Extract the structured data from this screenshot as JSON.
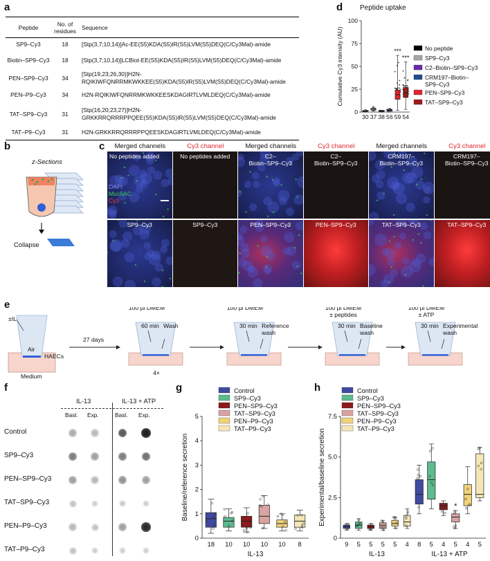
{
  "panels": {
    "a": "a",
    "b": "b",
    "c": "c",
    "d": "d",
    "e": "e",
    "f": "f",
    "g": "g",
    "h": "h"
  },
  "table": {
    "headers": [
      "Peptide",
      "No. of residues",
      "Sequence"
    ],
    "header_residues_line1": "No. of",
    "header_residues_line2": "residues",
    "rows": [
      {
        "peptide": "SP9–Cy3",
        "residues": "18",
        "sequence": "[Stp(3,7;10,14)]Ac-EE(S5)KDA(S5)IR(S5)LVM(S5)DEQ(C/Cy3Mal)-amide"
      },
      {
        "peptide": "Biotin–SP9–Cy3",
        "residues": "18",
        "sequence": "[Stp(3,7;10,14)]LCBiot-EE(S5)KDA(S5)IR(S5)LVM(S5)DEQ(C/Cy3Mal)-amide"
      },
      {
        "peptide": "PEN–SP9–Cy3",
        "residues": "34",
        "sequence": "[Stp(19,23;26,30)]H2N-RQIKIWFQNRRMKWKKEE(S5)KDA(S5)IR(S5)LVM(S5)DEQ(C/Cy3Mal)-amide"
      },
      {
        "peptide": "PEN–P9–Cy3",
        "residues": "34",
        "sequence": "H2N-RQIKIWFQNRRMKWKKEESKDAGIRTLVMLDEQ(C/Cy3Mal)-amide"
      },
      {
        "peptide": "TAT–SP9–Cy3",
        "residues": "31",
        "sequence": "[Stp(16,20;23,27)]H2N-GRKKRRQRRRPPQEE(S5)KDA(S5)IR(S5)LVM(S5)DEQ(C/Cy3Mal)-amide"
      },
      {
        "peptide": "TAT–P9–Cy3",
        "residues": "31",
        "sequence": "H2N-GRKKRRQRRRPPQEESKDAGIRTLVMLDEQ(C/Cy3Mal)-amide"
      }
    ]
  },
  "panel_b": {
    "title": "z-Sections",
    "arrow_label": "Collapse"
  },
  "panel_c": {
    "column_headers": [
      "Merged channels",
      "Cy3 channel",
      "Merged channels",
      "Cy3 channel",
      "Merged channels",
      "Cy3 channel"
    ],
    "top_labels": [
      "No peptides added",
      "No peptides added",
      "C2–\nBiotin–SP9–Cy3",
      "C2–\nBiotin–SP9–Cy3",
      "CRM197–\nBiotin–SP9–Cy3",
      "CRM197–\nBiotin–SP9–Cy3"
    ],
    "bottom_labels": [
      "SP9–Cy3",
      "SP9–Cy3",
      "PEN–SP9–Cy3",
      "PEN–SP9–Cy3",
      "TAT–SP9–Cy3",
      "TAT–SP9–Cy3"
    ],
    "stain_labels": [
      "DAPI",
      "Muc5AC",
      "Cy3"
    ],
    "stain_colors": [
      "#6f7cff",
      "#3bd34b",
      "#ff3b3b"
    ]
  },
  "chart_data": [
    {
      "panel": "d",
      "type": "box",
      "title": "Peptide uptake",
      "ylabel": "Cumulative Cy3 intensity (AU)",
      "ylim": [
        0,
        100
      ],
      "yticks": [
        0,
        25,
        50,
        75,
        100
      ],
      "series": [
        {
          "name": "No peptide",
          "color": "#000000",
          "median": 1,
          "q1": 0.5,
          "q3": 1.5,
          "min": 0,
          "max": 2.5,
          "n": "30",
          "sig": ""
        },
        {
          "name": "SP9–Cy3",
          "color": "#a6a6a6",
          "median": 3,
          "q1": 2,
          "q3": 4,
          "min": 1,
          "max": 6,
          "n": "37",
          "sig": ""
        },
        {
          "name": "C2–Biotin–SP9–Cy3",
          "color": "#6b2aa8",
          "median": 1,
          "q1": 0.5,
          "q3": 1.5,
          "min": 0,
          "max": 2,
          "n": "38",
          "sig": ""
        },
        {
          "name": "CRM197–Biotin–SP9–Cy3",
          "color": "#1f4f8f",
          "median": 2,
          "q1": 1,
          "q3": 3,
          "min": 0,
          "max": 4,
          "n": "56",
          "sig": ""
        },
        {
          "name": "PEN–SP9–Cy3",
          "color": "#e0262b",
          "median": 19,
          "q1": 14,
          "q3": 24,
          "min": 2,
          "max": 62,
          "n": "59",
          "sig": "***"
        },
        {
          "name": "TAT–SP9–Cy3",
          "color": "#9b1c1c",
          "median": 21,
          "q1": 16,
          "q3": 27,
          "min": 3,
          "max": 55,
          "n": "54",
          "sig": "***"
        }
      ],
      "legend": [
        "No peptide",
        "SP9–Cy3",
        "C2–Biotin–SP9–Cy3",
        "CRM197–Biotin–\nSP9–Cy3",
        "PEN–SP9–Cy3",
        "TAT–SP9–Cy3"
      ]
    },
    {
      "panel": "g",
      "type": "box",
      "ylabel": "Baseline/reference secretion",
      "xlabel": "IL-13",
      "ylim": [
        0,
        5
      ],
      "yticks": [
        0,
        1,
        2,
        3,
        4,
        5
      ],
      "series": [
        {
          "name": "Control",
          "color": "#3f4aa0",
          "median": 0.8,
          "q1": 0.45,
          "q3": 1.05,
          "min": 0.2,
          "max": 1.6,
          "n": "18"
        },
        {
          "name": "SP9–Cy3",
          "color": "#5dbb8f",
          "median": 0.7,
          "q1": 0.45,
          "q3": 0.85,
          "min": 0.3,
          "max": 1.2,
          "n": "10"
        },
        {
          "name": "PEN–SP9–Cy3",
          "color": "#8b1a1a",
          "median": 0.7,
          "q1": 0.45,
          "q3": 0.9,
          "min": 0.25,
          "max": 1.25,
          "n": "10"
        },
        {
          "name": "TAT–SP9–Cy3",
          "color": "#d9a3a3",
          "median": 0.9,
          "q1": 0.6,
          "q3": 1.35,
          "min": 0.4,
          "max": 1.75,
          "n": "10"
        },
        {
          "name": "PEN–P9–Cy3",
          "color": "#f0d27a",
          "median": 0.6,
          "q1": 0.45,
          "q3": 0.75,
          "min": 0.3,
          "max": 1.0,
          "n": "10"
        },
        {
          "name": "TAT–P9–Cy3",
          "color": "#f5e6b8",
          "median": 0.7,
          "q1": 0.45,
          "q3": 0.95,
          "min": 0.3,
          "max": 1.15,
          "n": "8"
        }
      ],
      "legend": [
        "Control",
        "SP9–Cy3",
        "PEN–SP9–Cy3",
        "TAT–SP9–Cy3",
        "PEN–P9–Cy3",
        "TAT–P9–Cy3"
      ]
    },
    {
      "panel": "h",
      "type": "box",
      "ylabel": "Experimental/baseline secretion",
      "ylim": [
        0,
        7.5
      ],
      "yticks": [
        0,
        2.5,
        5.0,
        7.5
      ],
      "ytick_labels": [
        "0",
        "2.5",
        "5.0",
        "7.5"
      ],
      "groups": [
        {
          "label": "IL-13",
          "series": [
            {
              "name": "Control",
              "color": "#3f4aa0",
              "median": 0.7,
              "q1": 0.6,
              "q3": 0.8,
              "min": 0.5,
              "max": 0.9,
              "n": "9"
            },
            {
              "name": "SP9–Cy3",
              "color": "#5dbb8f",
              "median": 0.8,
              "q1": 0.6,
              "q3": 1.0,
              "min": 0.5,
              "max": 1.2,
              "n": "5"
            },
            {
              "name": "PEN–SP9–Cy3",
              "color": "#8b1a1a",
              "median": 0.7,
              "q1": 0.6,
              "q3": 0.8,
              "min": 0.5,
              "max": 0.9,
              "n": "5"
            },
            {
              "name": "TAT–SP9–Cy3",
              "color": "#d9a3a3",
              "median": 0.8,
              "q1": 0.6,
              "q3": 0.95,
              "min": 0.5,
              "max": 1.1,
              "n": "5"
            },
            {
              "name": "PEN–P9–Cy3",
              "color": "#f0d27a",
              "median": 0.9,
              "q1": 0.75,
              "q3": 1.1,
              "min": 0.6,
              "max": 1.3,
              "n": "5"
            },
            {
              "name": "TAT–P9–Cy3",
              "color": "#f5e6b8",
              "median": 1.0,
              "q1": 0.75,
              "q3": 1.4,
              "min": 0.6,
              "max": 1.8,
              "n": "4"
            }
          ]
        },
        {
          "label": "IL-13 + ATP",
          "series": [
            {
              "name": "Control",
              "color": "#3f4aa0",
              "median": 2.7,
              "q1": 2.1,
              "q3": 3.6,
              "min": 1.5,
              "max": 4.5,
              "n": "8",
              "sig": ""
            },
            {
              "name": "SP9–Cy3",
              "color": "#5dbb8f",
              "median": 3.6,
              "q1": 2.4,
              "q3": 4.7,
              "min": 1.8,
              "max": 5.8,
              "n": "5",
              "sig": ""
            },
            {
              "name": "PEN–SP9–Cy3",
              "color": "#8b1a1a",
              "median": 2.0,
              "q1": 1.75,
              "q3": 2.15,
              "min": 1.4,
              "max": 2.3,
              "n": "4",
              "sig": ""
            },
            {
              "name": "TAT–SP9–Cy3",
              "color": "#d9a3a3",
              "median": 1.3,
              "q1": 1.0,
              "q3": 1.5,
              "min": 0.6,
              "max": 1.7,
              "n": "5",
              "sig": "*"
            },
            {
              "name": "PEN–P9–Cy3",
              "color": "#f0d27a",
              "median": 2.7,
              "q1": 2.0,
              "q3": 3.3,
              "min": 1.5,
              "max": 4.4,
              "n": "4",
              "sig": ""
            },
            {
              "name": "TAT–P9–Cy3",
              "color": "#f5e6b8",
              "median": 2.7,
              "q1": 2.5,
              "q3": 5.2,
              "min": 2.3,
              "max": 5.6,
              "n": "5",
              "sig": ""
            }
          ]
        }
      ],
      "legend": [
        "Control",
        "SP9–Cy3",
        "PEN–SP9–Cy3",
        "TAT–SP9–Cy3",
        "PEN–P9–Cy3",
        "TAT–P9–Cy3"
      ]
    }
  ],
  "panel_e": {
    "il13": "±IL-13",
    "air": "Air",
    "haecs": "HAECs",
    "medium": "Medium",
    "days": "27 days",
    "steps": [
      {
        "top": "100 µl DMEM",
        "time": "60 min",
        "wash": "Wash",
        "sub": "4×"
      },
      {
        "top": "100 µl DMEM",
        "time": "30 min",
        "wash": "Reference\nwash",
        "sub": ""
      },
      {
        "top": "100 µl DMEM\n± peptides",
        "time": "30 min",
        "wash": "Baseline\nwash",
        "sub": ""
      },
      {
        "top": "100 µl DMEM\n± ATP",
        "time": "30 min",
        "wash": "Experimental\nwash",
        "sub": ""
      }
    ]
  },
  "panel_f": {
    "group_headers": [
      "IL-13",
      "IL-13 + ATP"
    ],
    "col_headers": [
      "Basl.",
      "Exp.",
      "Basl.",
      "Exp."
    ],
    "rows": [
      "Control",
      "SP9–Cy3",
      "PEN–SP9–Cy3",
      "TAT–SP9–Cy3",
      "PEN–P9–Cy3",
      "TAT–P9–Cy3"
    ],
    "intensity": [
      [
        0.35,
        0.3,
        0.7,
        0.95
      ],
      [
        0.55,
        0.4,
        0.55,
        0.6
      ],
      [
        0.4,
        0.3,
        0.45,
        0.4
      ],
      [
        0.25,
        0.2,
        0.22,
        0.2
      ],
      [
        0.3,
        0.25,
        0.4,
        0.9
      ],
      [
        0.25,
        0.2,
        0.2,
        0.2
      ]
    ]
  }
}
